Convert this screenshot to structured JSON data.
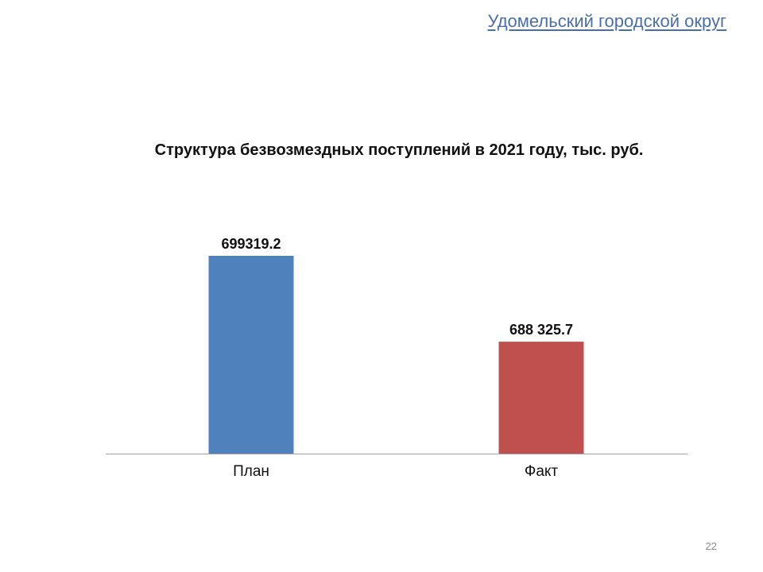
{
  "header": {
    "link_text": "Удомельский городской округ"
  },
  "chart_data": {
    "type": "bar",
    "title": "Структура безвозмездных поступлений в 2021 году, тыс. руб.",
    "categories": [
      "План",
      "Факт"
    ],
    "values": [
      699319.2,
      688325.7
    ],
    "data_labels": [
      "699319.2",
      "688 325.7"
    ],
    "colors": [
      "#4f81bd",
      "#c0504d"
    ],
    "grid": false,
    "legend": "none"
  },
  "footer": {
    "page_number": "22"
  }
}
